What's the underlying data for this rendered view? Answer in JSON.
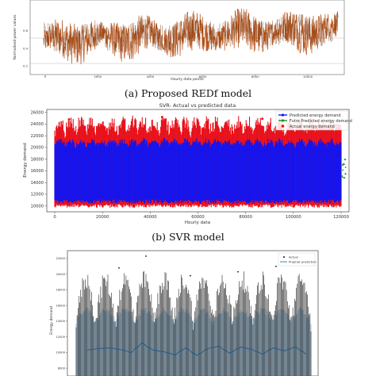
{
  "panel_captions": [
    "(a) Proposed REDf model",
    "(b) SVR model"
  ],
  "colors": {
    "redf_line": "#b5541c",
    "redf_line_dark": "#7a3a12",
    "svr_actual": "#e8101a",
    "svr_predicted": "#1414ee",
    "svr_future": "#1f8f2a",
    "prophet_actual": "#111111",
    "prophet_band": "#a9cfe8",
    "prophet_line": "#1f5b8c"
  },
  "chart_data": [
    {
      "type": "line",
      "title": "",
      "xlabel": "Hourly data points",
      "ylabel": "Normalised power values",
      "xlim": [
        0,
        14000
      ],
      "x_ticks": [
        "0",
        "2000",
        "4000",
        "6000",
        "8000",
        "10000"
      ],
      "y_ticks": [
        "0.2",
        "0.4",
        "0.6"
      ],
      "series": [
        {
          "name": "",
          "values_summary": {
            "min": 0.18,
            "max": 0.92,
            "mean": 0.55
          }
        }
      ]
    },
    {
      "type": "scatter",
      "title": "SVR- Actual vs predicted data",
      "xlabel": "Hourly data",
      "ylabel": "Energy demand",
      "xlim": [
        0,
        120000
      ],
      "ylim": [
        10000,
        26000
      ],
      "x_ticks": [
        "0",
        "20000",
        "40000",
        "60000",
        "80000",
        "100000",
        "120000"
      ],
      "y_ticks": [
        "10000",
        "12000",
        "14000",
        "16000",
        "18000",
        "20000",
        "22000",
        "24000",
        "26000"
      ],
      "legend_position": "top-right",
      "series": [
        {
          "name": "Predicted energy demand",
          "values_summary": {
            "min": 10500,
            "max": 21500
          }
        },
        {
          "name": "Futre Predicted energy demand",
          "values_summary": {
            "x_range": [
              120000,
              122000
            ],
            "min": 14500,
            "max": 18500
          }
        },
        {
          "name": "Actual energy demand",
          "values_summary": {
            "min": 9600,
            "max": 25500
          }
        }
      ]
    },
    {
      "type": "scatter",
      "title": "",
      "xlabel": "",
      "ylabel": "Energy demand",
      "y_ticks": [
        "22000",
        "20000",
        "18000",
        "16000",
        "14000",
        "12000",
        "10000",
        "8000"
      ],
      "ylim": [
        7000,
        23000
      ],
      "legend_position": "top-right",
      "series": [
        {
          "name": "Actual"
        },
        {
          "name": "Prophet prediction"
        }
      ],
      "prediction_values": [
        10300,
        10500,
        10600,
        10400,
        10000,
        11200,
        10300,
        10100,
        9700,
        10600,
        9600,
        10500,
        10800,
        9900,
        10700,
        10400,
        9800,
        10600,
        10200,
        10700,
        9800
      ]
    }
  ]
}
